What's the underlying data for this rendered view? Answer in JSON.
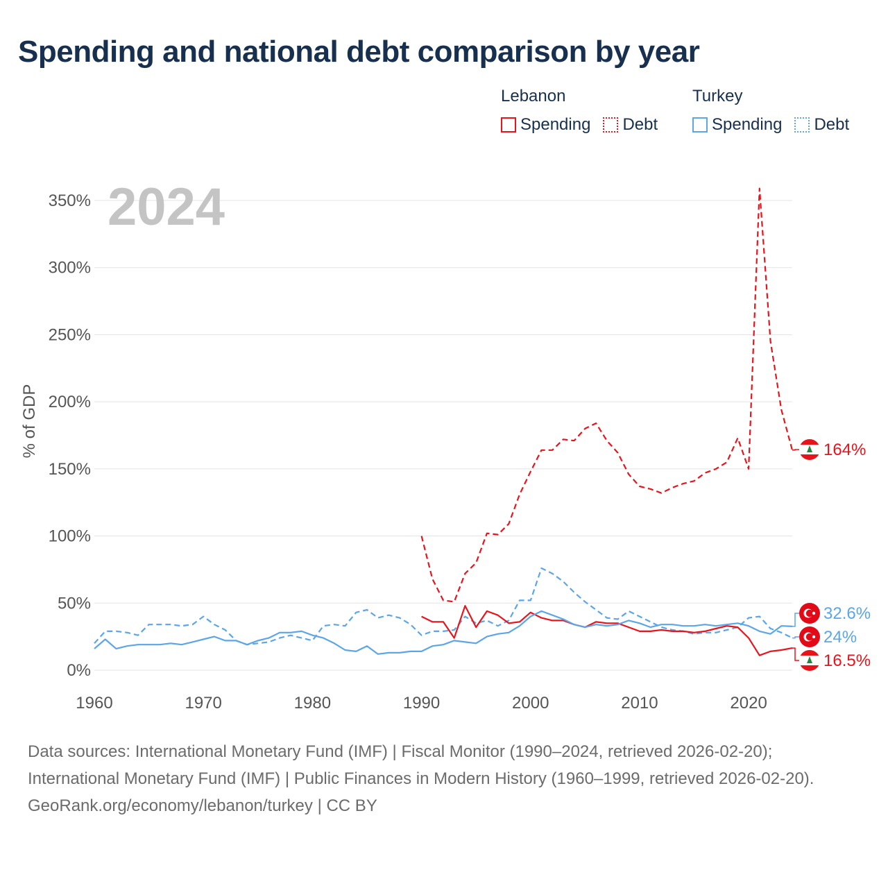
{
  "title": "Spending and national debt comparison by year",
  "year_watermark": "2024",
  "legend": {
    "groups": [
      {
        "country": "Lebanon",
        "items": [
          {
            "label": "Spending",
            "color": "#e8141c",
            "style": "solid"
          },
          {
            "label": "Debt",
            "color": "#e8141c",
            "style": "dotted"
          }
        ]
      },
      {
        "country": "Turkey",
        "items": [
          {
            "label": "Spending",
            "color": "#5aa6e8",
            "style": "solid"
          },
          {
            "label": "Debt",
            "color": "#5aa6e8",
            "style": "dotted"
          }
        ]
      }
    ]
  },
  "chart_data": {
    "type": "line",
    "title": "Spending and national debt comparison by year",
    "xlabel": "",
    "ylabel": "% of GDP",
    "xlim": [
      1960,
      2024
    ],
    "ylim": [
      0,
      350
    ],
    "xticks": [
      1960,
      1970,
      1980,
      1990,
      2000,
      2010,
      2020
    ],
    "yticks": [
      0,
      50,
      100,
      150,
      200,
      250,
      300,
      350
    ],
    "ytick_labels": [
      "0%",
      "50%",
      "100%",
      "150%",
      "200%",
      "250%",
      "300%",
      "350%"
    ],
    "grid": true,
    "series": [
      {
        "name": "Lebanon Debt",
        "color": "#e8141c",
        "dash": "dashed",
        "x": [
          1990,
          1991,
          1992,
          1993,
          1994,
          1995,
          1996,
          1997,
          1998,
          1999,
          2000,
          2001,
          2002,
          2003,
          2004,
          2005,
          2006,
          2007,
          2008,
          2009,
          2010,
          2011,
          2012,
          2013,
          2014,
          2015,
          2016,
          2017,
          2018,
          2019,
          2020,
          2021,
          2022,
          2023,
          2024
        ],
        "values": [
          100,
          68,
          52,
          51,
          72,
          80,
          102,
          101,
          109,
          131,
          148,
          164,
          164,
          172,
          171,
          180,
          184,
          171,
          162,
          146,
          137,
          135,
          132,
          136,
          139,
          141,
          147,
          150,
          155,
          173,
          150,
          359,
          245,
          194,
          164
        ]
      },
      {
        "name": "Turkey Debt",
        "color": "#5aa6e8",
        "dash": "dashed",
        "x": [
          1960,
          1961,
          1962,
          1963,
          1964,
          1965,
          1966,
          1967,
          1968,
          1969,
          1970,
          1971,
          1972,
          1973,
          1974,
          1975,
          1976,
          1977,
          1978,
          1979,
          1980,
          1981,
          1982,
          1983,
          1984,
          1985,
          1986,
          1987,
          1988,
          1989,
          1990,
          1991,
          1992,
          1993,
          1994,
          1995,
          1996,
          1997,
          1998,
          1999,
          2000,
          2001,
          2002,
          2003,
          2004,
          2005,
          2006,
          2007,
          2008,
          2009,
          2010,
          2011,
          2012,
          2013,
          2014,
          2015,
          2016,
          2017,
          2018,
          2019,
          2020,
          2021,
          2022,
          2023,
          2024
        ],
        "values": [
          20,
          29,
          29,
          28,
          26,
          34,
          34,
          34,
          33,
          34,
          40,
          34,
          30,
          22,
          19,
          20,
          21,
          24,
          26,
          24,
          22,
          33,
          34,
          33,
          43,
          45,
          39,
          41,
          39,
          34,
          26,
          29,
          29,
          30,
          40,
          35,
          37,
          33,
          37,
          52,
          52,
          76,
          72,
          66,
          58,
          51,
          45,
          39,
          38,
          44,
          40,
          36,
          32,
          30,
          29,
          27,
          28,
          28,
          30,
          32,
          39,
          40,
          31,
          28,
          24
        ]
      },
      {
        "name": "Lebanon Spending",
        "color": "#e8141c",
        "dash": "solid",
        "x": [
          1990,
          1991,
          1992,
          1993,
          1994,
          1995,
          1996,
          1997,
          1998,
          1999,
          2000,
          2001,
          2002,
          2003,
          2004,
          2005,
          2006,
          2007,
          2008,
          2009,
          2010,
          2011,
          2012,
          2013,
          2014,
          2015,
          2016,
          2017,
          2018,
          2019,
          2020,
          2021,
          2022,
          2023,
          2024
        ],
        "values": [
          40,
          36,
          36,
          24,
          48,
          32,
          44,
          41,
          35,
          36,
          43,
          39,
          37,
          37,
          34,
          32,
          36,
          35,
          35,
          32,
          29,
          29,
          30,
          29,
          29,
          28,
          29,
          31,
          33,
          32,
          24,
          11,
          14,
          15,
          16.5
        ]
      },
      {
        "name": "Turkey Spending",
        "color": "#5aa6e8",
        "dash": "solid",
        "x": [
          1960,
          1961,
          1962,
          1963,
          1964,
          1965,
          1966,
          1967,
          1968,
          1969,
          1970,
          1971,
          1972,
          1973,
          1974,
          1975,
          1976,
          1977,
          1978,
          1979,
          1980,
          1981,
          1982,
          1983,
          1984,
          1985,
          1986,
          1987,
          1988,
          1989,
          1990,
          1991,
          1992,
          1993,
          1994,
          1995,
          1996,
          1997,
          1998,
          1999,
          2000,
          2001,
          2002,
          2003,
          2004,
          2005,
          2006,
          2007,
          2008,
          2009,
          2010,
          2011,
          2012,
          2013,
          2014,
          2015,
          2016,
          2017,
          2018,
          2019,
          2020,
          2021,
          2022,
          2023,
          2024
        ],
        "values": [
          16,
          23,
          16,
          18,
          19,
          19,
          19,
          20,
          19,
          21,
          23,
          25,
          22,
          22,
          19,
          22,
          24,
          28,
          28,
          29,
          26,
          24,
          20,
          15,
          14,
          18,
          12,
          13,
          13,
          14,
          14,
          18,
          19,
          22,
          21,
          20,
          25,
          27,
          28,
          33,
          40,
          44,
          41,
          38,
          34,
          32,
          34,
          33,
          34,
          37,
          35,
          32,
          34,
          34,
          33,
          33,
          34,
          33,
          34,
          35,
          33,
          29,
          27,
          33,
          32.6
        ]
      }
    ],
    "end_labels": [
      {
        "series": "Lebanon Debt",
        "text": "164%",
        "color": "#e8141c",
        "flag": "lebanon"
      },
      {
        "series": "Turkey Spending",
        "text": "32.6%",
        "color": "#5aa6e8",
        "flag": "turkey"
      },
      {
        "series": "Turkey Debt",
        "text": "24%",
        "color": "#5aa6e8",
        "flag": "turkey"
      },
      {
        "series": "Lebanon Spending",
        "text": "16.5%",
        "color": "#e8141c",
        "flag": "lebanon"
      }
    ]
  },
  "footer": {
    "sources": "Data sources: International Monetary Fund (IMF) | Fiscal Monitor (1990–2024, retrieved 2026-02-20); International Monetary Fund (IMF) | Public Finances in Modern History (1960–1999, retrieved 2026-02-20).",
    "attribution": "GeoRank.org/economy/lebanon/turkey | CC BY"
  }
}
